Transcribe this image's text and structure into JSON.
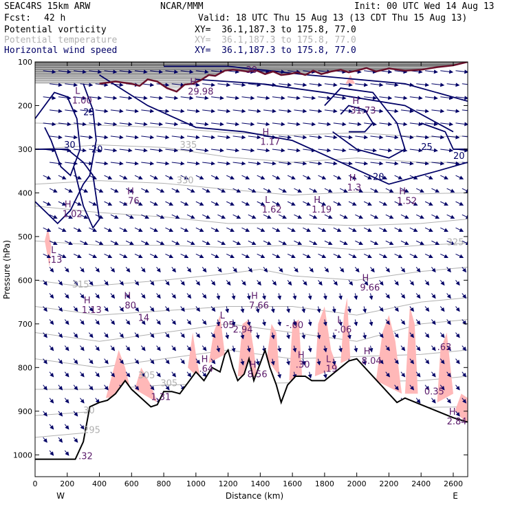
{
  "header": {
    "model": "SEAC4RS 15km ARW",
    "org": "NCAR/MMM",
    "init": "Init: 00 UTC Wed 14 Aug 13",
    "fcst_label": "Fcst:",
    "fcst_value": "42 h",
    "valid": "Valid: 18 UTC Thu 15 Aug 13 (13 CDT Thu 15 Aug 13)",
    "fields": [
      {
        "name": "Potential vorticity",
        "xy": "XY=  36.1,187.3 to 175.8, 77.0",
        "color": "#000000"
      },
      {
        "name": "Potential temperature",
        "xy": "XY=  36.1,187.3 to 175.8, 77.0",
        "color": "#b0b0b0"
      },
      {
        "name": "Horizontal wind speed",
        "xy": "XY=  36.1,187.3 to 175.8, 77.0",
        "color": "#000066"
      }
    ]
  },
  "chart_data": {
    "type": "cross-section",
    "xlabel": "Distance (km)",
    "ylabel": "Pressure (hPa)",
    "xlim": [
      0,
      2690
    ],
    "ylim": [
      1050,
      100
    ],
    "x_ticks": [
      0,
      200,
      400,
      600,
      800,
      1000,
      1200,
      1400,
      1600,
      1800,
      2000,
      2200,
      2400,
      2600
    ],
    "y_ticks": [
      100,
      200,
      300,
      400,
      500,
      600,
      700,
      800,
      900,
      1000
    ],
    "west_label": "W",
    "east_label": "E",
    "colors": {
      "pv": "#ffb8b8",
      "theta": "#b0b0b0",
      "wind": "#000066",
      "tropopause": "#6a0f2a",
      "terrain": "#000000"
    },
    "terrain": [
      [
        0,
        1010
      ],
      [
        250,
        1010
      ],
      [
        300,
        970
      ],
      [
        340,
        890
      ],
      [
        400,
        880
      ],
      [
        450,
        875
      ],
      [
        500,
        860
      ],
      [
        560,
        830
      ],
      [
        600,
        850
      ],
      [
        660,
        870
      ],
      [
        720,
        890
      ],
      [
        760,
        885
      ],
      [
        800,
        855
      ],
      [
        850,
        855
      ],
      [
        900,
        860
      ],
      [
        950,
        835
      ],
      [
        1000,
        810
      ],
      [
        1050,
        830
      ],
      [
        1100,
        800
      ],
      [
        1150,
        810
      ],
      [
        1180,
        770
      ],
      [
        1200,
        760
      ],
      [
        1230,
        800
      ],
      [
        1260,
        830
      ],
      [
        1300,
        815
      ],
      [
        1330,
        780
      ],
      [
        1360,
        830
      ],
      [
        1400,
        790
      ],
      [
        1430,
        760
      ],
      [
        1460,
        800
      ],
      [
        1500,
        840
      ],
      [
        1530,
        880
      ],
      [
        1570,
        840
      ],
      [
        1620,
        820
      ],
      [
        1680,
        820
      ],
      [
        1720,
        830
      ],
      [
        1800,
        830
      ],
      [
        1850,
        815
      ],
      [
        1900,
        800
      ],
      [
        1950,
        785
      ],
      [
        2000,
        780
      ],
      [
        2050,
        800
      ],
      [
        2100,
        820
      ],
      [
        2150,
        840
      ],
      [
        2200,
        860
      ],
      [
        2250,
        880
      ],
      [
        2300,
        870
      ],
      [
        2400,
        885
      ],
      [
        2500,
        900
      ],
      [
        2600,
        915
      ],
      [
        2690,
        925
      ]
    ],
    "tropopause": [
      [
        400,
        150
      ],
      [
        500,
        145
      ],
      [
        560,
        148
      ],
      [
        600,
        150
      ],
      [
        650,
        155
      ],
      [
        700,
        140
      ],
      [
        760,
        145
      ],
      [
        820,
        160
      ],
      [
        880,
        168
      ],
      [
        930,
        152
      ],
      [
        980,
        150
      ],
      [
        1030,
        142
      ],
      [
        1080,
        130
      ],
      [
        1120,
        132
      ],
      [
        1180,
        120
      ],
      [
        1230,
        118
      ],
      [
        1280,
        120
      ],
      [
        1320,
        122
      ],
      [
        1380,
        120
      ],
      [
        1430,
        128
      ],
      [
        1480,
        122
      ],
      [
        1530,
        130
      ],
      [
        1580,
        128
      ],
      [
        1630,
        124
      ],
      [
        1680,
        130
      ],
      [
        1730,
        120
      ],
      [
        1780,
        128
      ],
      [
        1840,
        122
      ],
      [
        1900,
        118
      ],
      [
        1950,
        124
      ],
      [
        2000,
        120
      ],
      [
        2060,
        114
      ],
      [
        2120,
        122
      ],
      [
        2200,
        115
      ],
      [
        2300,
        120
      ],
      [
        2400,
        118
      ],
      [
        2500,
        112
      ],
      [
        2600,
        108
      ],
      [
        2690,
        100
      ]
    ],
    "theta_labels": [
      {
        "text": "335",
        "x": 900,
        "p": 297
      },
      {
        "text": "330",
        "x": 880,
        "p": 378
      },
      {
        "text": "325",
        "x": 2560,
        "p": 520
      },
      {
        "text": "315",
        "x": 230,
        "p": 617
      },
      {
        "text": "305",
        "x": 640,
        "p": 825
      },
      {
        "text": "305",
        "x": 780,
        "p": 843
      },
      {
        "text": "295",
        "x": 300,
        "p": 950
      },
      {
        "text": "30",
        "x": 300,
        "p": 905
      }
    ],
    "wind_labels": [
      {
        "text": "25",
        "x": 300,
        "p": 222
      },
      {
        "text": "30",
        "x": 180,
        "p": 297
      },
      {
        "text": "20",
        "x": 350,
        "p": 307
      },
      {
        "text": "25",
        "x": 2400,
        "p": 302
      },
      {
        "text": "20",
        "x": 2600,
        "p": 322
      },
      {
        "text": "20",
        "x": 2100,
        "p": 370
      }
    ],
    "pv_extrema": [
      {
        "kind": "H",
        "value": "1.02",
        "x": 170,
        "p": 455
      },
      {
        "kind": "H",
        "value": ".76",
        "x": 560,
        "p": 425
      },
      {
        "kind": "L",
        "value": "1.62",
        "x": 1410,
        "p": 445
      },
      {
        "kind": "H",
        "value": "1.19",
        "x": 1720,
        "p": 445
      },
      {
        "kind": "H",
        "value": "1.3",
        "x": 1940,
        "p": 395
      },
      {
        "kind": "H",
        "value": "1.52",
        "x": 2250,
        "p": 425
      },
      {
        "kind": "L",
        "value": ".13",
        "x": 80,
        "p": 560
      },
      {
        "kind": "H",
        "value": "1.13",
        "x": 290,
        "p": 675
      },
      {
        "kind": "H",
        "value": ".80",
        "x": 540,
        "p": 665
      },
      {
        "kind": "",
        "value": "14",
        "x": 640,
        "p": 693
      },
      {
        "kind": "H",
        "value": "7.66",
        "x": 1330,
        "p": 665
      },
      {
        "kind": "H",
        "value": "9.66",
        "x": 2020,
        "p": 624
      },
      {
        "kind": "L",
        "value": "-.05",
        "x": 1130,
        "p": 710
      },
      {
        "kind": "",
        "value": "2.94",
        "x": 1230,
        "p": 720
      },
      {
        "kind": "",
        "value": "-.00",
        "x": 1560,
        "p": 710
      },
      {
        "kind": "L",
        "value": "-.06",
        "x": 1860,
        "p": 720
      },
      {
        "kind": "H",
        "value": ".64",
        "x": 1020,
        "p": 810
      },
      {
        "kind": "H",
        "value": "8.56",
        "x": 1320,
        "p": 822
      },
      {
        "kind": "H",
        "value": ".30",
        "x": 1620,
        "p": 800
      },
      {
        "kind": "L",
        "value": ".19",
        "x": 1790,
        "p": 810
      },
      {
        "kind": "H",
        "value": "8.04",
        "x": 2030,
        "p": 792
      },
      {
        "kind": "",
        "value": ".63",
        "x": 2500,
        "p": 760
      },
      {
        "kind": "",
        "value": "0.35",
        "x": 2420,
        "p": 862
      },
      {
        "kind": "H",
        "value": "2.84",
        "x": 2560,
        "p": 930
      },
      {
        "kind": "",
        "value": "1.31",
        "x": 720,
        "p": 874
      },
      {
        "kind": "",
        "value": ".32",
        "x": 270,
        "p": 1010
      }
    ],
    "upper_extrema": [
      {
        "kind": "L",
        "value": "1.00",
        "x": 230,
        "p": 195
      },
      {
        "kind": "H",
        "value": "29.98",
        "x": 950,
        "p": 175
      },
      {
        "kind": "H",
        "value": "31.73",
        "x": 1960,
        "p": 218
      },
      {
        "kind": "H",
        "value": "1.17",
        "x": 1400,
        "p": 290
      },
      {
        "kind": "",
        "value": "30",
        "x": 1310,
        "p": 125
      }
    ]
  }
}
